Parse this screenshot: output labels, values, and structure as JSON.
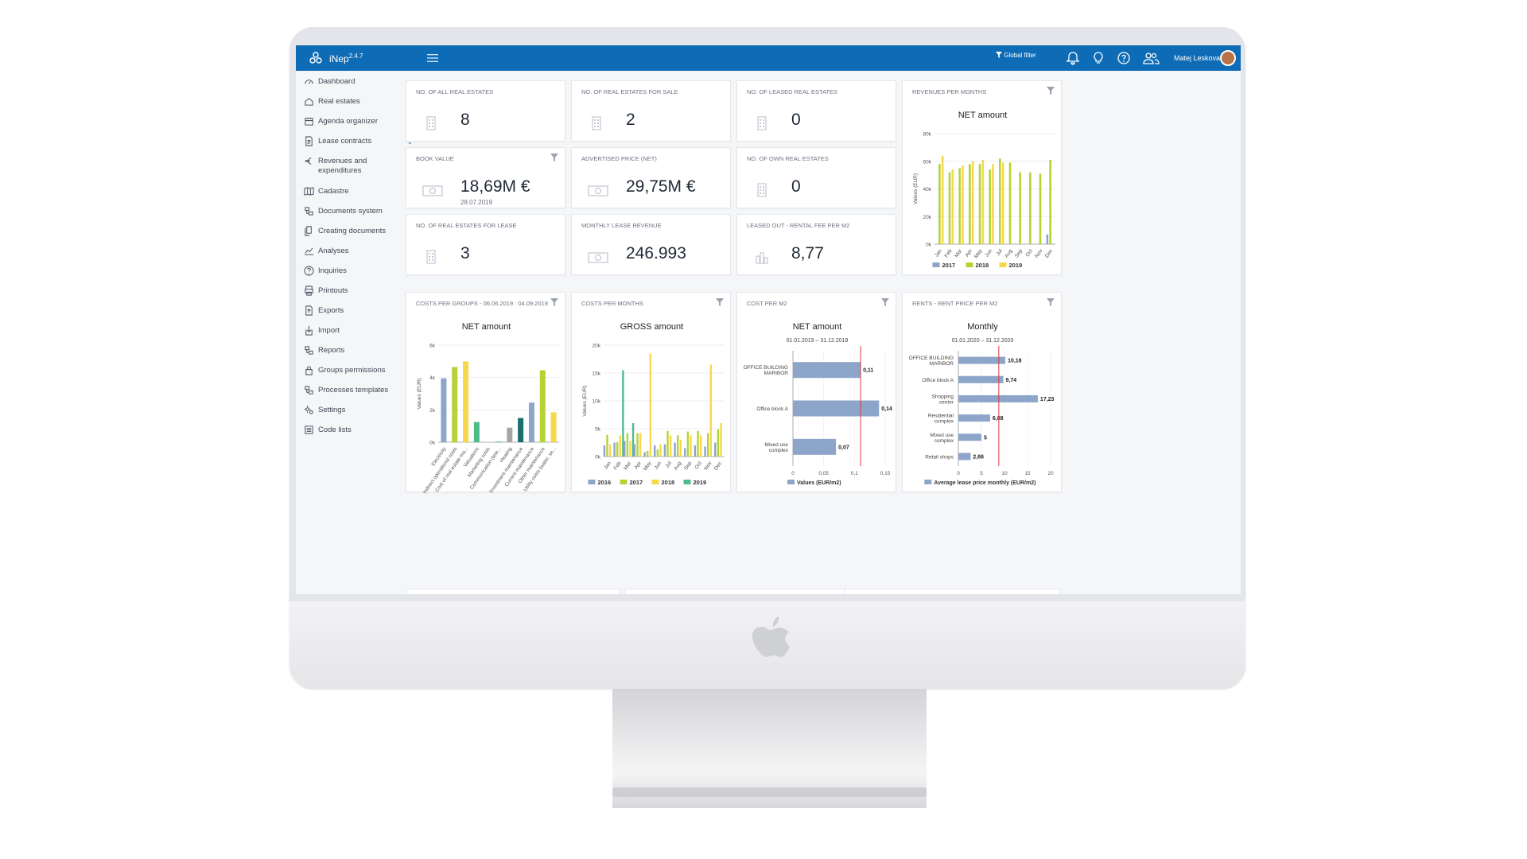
{
  "app": {
    "brand": "iNep",
    "version": "2.4.7",
    "global_filter": "Global filter",
    "user_name": "Matej Leskovar"
  },
  "sidebar": {
    "items": [
      {
        "label": "Dashboard",
        "icon": "dashboard-icon",
        "expandable": false
      },
      {
        "label": "Real estates",
        "icon": "home-icon",
        "expandable": true
      },
      {
        "label": "Agenda organizer",
        "icon": "calendar-icon",
        "expandable": false
      },
      {
        "label": "Lease contracts",
        "icon": "contract-icon",
        "expandable": true
      },
      {
        "label": "Revenues and expenditures",
        "icon": "euro-icon",
        "expandable": true
      },
      {
        "label": "Cadastre",
        "icon": "map-icon",
        "expandable": true
      },
      {
        "label": "Documents system",
        "icon": "documents-system-icon",
        "expandable": false
      },
      {
        "label": "Creating documents",
        "icon": "copy-icon",
        "expandable": false
      },
      {
        "label": "Analyses",
        "icon": "analytics-icon",
        "expandable": true
      },
      {
        "label": "Inquiries",
        "icon": "question-icon",
        "expandable": false
      },
      {
        "label": "Printouts",
        "icon": "printer-icon",
        "expandable": false
      },
      {
        "label": "Exports",
        "icon": "export-icon",
        "expandable": false
      },
      {
        "label": "Import",
        "icon": "import-icon",
        "expandable": false
      },
      {
        "label": "Reports",
        "icon": "reports-icon",
        "expandable": false
      },
      {
        "label": "Groups permissions",
        "icon": "lock-icon",
        "expandable": false
      },
      {
        "label": "Processes templates",
        "icon": "processes-icon",
        "expandable": false
      },
      {
        "label": "Settings",
        "icon": "gears-icon",
        "expandable": false
      },
      {
        "label": "Code lists",
        "icon": "list-icon",
        "expandable": false
      }
    ]
  },
  "kpis": [
    {
      "title": "NO. OF ALL REAL ESTATES",
      "value": "8",
      "sub": "",
      "icon": "building-icon",
      "filter": false
    },
    {
      "title": "NO. OF REAL ESTATES FOR SALE",
      "value": "2",
      "sub": "",
      "icon": "building-icon",
      "filter": false
    },
    {
      "title": "NO. OF LEASED REAL ESTATES",
      "value": "0",
      "sub": "",
      "icon": "building-icon",
      "filter": false
    },
    {
      "title": "BOOK VALUE",
      "value": "18,69M €",
      "sub": "28.07.2019",
      "icon": "money-icon",
      "filter": true
    },
    {
      "title": "ADVERTISED PRICE (NET)",
      "value": "29,75M €",
      "sub": "",
      "icon": "money-icon",
      "filter": false
    },
    {
      "title": "NO. OF OWN REAL ESTATES",
      "value": "0",
      "sub": "",
      "icon": "building-icon",
      "filter": false
    },
    {
      "title": "NO. OF REAL ESTATES FOR LEASE",
      "value": "3",
      "sub": "",
      "icon": "building-icon",
      "filter": false
    },
    {
      "title": "MONTHLY LEASE REVENUE",
      "value": "246.993",
      "sub": "",
      "icon": "money-icon",
      "filter": false
    },
    {
      "title": "LEASED OUT - RENTAL FEE PER M2",
      "value": "8,77",
      "sub": "",
      "icon": "bar-chart-icon",
      "filter": false
    }
  ],
  "colors": {
    "blue": "#8ca5c9",
    "green": "#b5d334",
    "yellow": "#f6d84a",
    "teal": "#4ebc8a",
    "gray": "#a6a6a6",
    "dark_teal": "#1a6e6c",
    "red_line": "#e03a3a",
    "topbar": "#0e6bb5"
  },
  "chart_data": [
    {
      "id": "revenues",
      "card_title": "REVENUES PER MONTHS",
      "type": "bar",
      "title": "NET amount",
      "ylabel": "Values (EUR)",
      "ylim": [
        0,
        80000
      ],
      "yticks": [
        "0k",
        "20k",
        "40k",
        "60k",
        "80k"
      ],
      "categories": [
        "Jan",
        "Feb",
        "Mar",
        "Apr",
        "May",
        "Jun",
        "Jul",
        "Aug",
        "Sep",
        "Oct",
        "Nov",
        "Dec"
      ],
      "series": [
        {
          "name": "2017",
          "color": "#8ca5c9",
          "values": [
            0,
            0,
            0,
            0,
            0,
            0,
            0,
            0,
            0,
            0,
            0,
            7000
          ]
        },
        {
          "name": "2018",
          "color": "#b5d334",
          "values": [
            58000,
            52000,
            55000,
            58000,
            58000,
            54000,
            62000,
            59000,
            52000,
            52000,
            51000,
            61000
          ]
        },
        {
          "name": "2019",
          "color": "#f6d84a",
          "values": [
            64000,
            54000,
            57000,
            60000,
            61000,
            58000,
            59000,
            0,
            0,
            0,
            0,
            0
          ]
        }
      ]
    },
    {
      "id": "costs_groups",
      "card_title": "COSTS PER GROUPS - 06.06.2019 : 04.09.2019",
      "type": "bar",
      "title": "NET amount",
      "ylabel": "Values (EUR)",
      "ylim": [
        0,
        6000
      ],
      "yticks": [
        "0k",
        "2k",
        "4k",
        "6k"
      ],
      "categories": [
        "Electricity",
        "Indirect operational costs",
        "Cost of real estate ma...",
        "Valuations",
        "Marketing costs",
        "Communication (tele...",
        "Heating",
        "Investment maintenance",
        "Current maintenance",
        "Other maintenance",
        "Utility costs (water, se..."
      ],
      "bars": [
        {
          "value": 3950,
          "color": "#8ca5c9"
        },
        {
          "value": 4650,
          "color": "#b5d334"
        },
        {
          "value": 5000,
          "color": "#f6d84a"
        },
        {
          "value": 1250,
          "color": "#4ebc8a"
        },
        {
          "value": 0,
          "color": "#8ca5c9"
        },
        {
          "value": 40,
          "color": "#4ebc8a"
        },
        {
          "value": 900,
          "color": "#a6a6a6"
        },
        {
          "value": 1500,
          "color": "#1a6e6c"
        },
        {
          "value": 2450,
          "color": "#8ca5c9"
        },
        {
          "value": 4450,
          "color": "#b5d334"
        },
        {
          "value": 1850,
          "color": "#f6d84a"
        }
      ]
    },
    {
      "id": "costs_months",
      "card_title": "COSTS PER MONTHS",
      "type": "bar",
      "title": "GROSS amount",
      "ylabel": "Values (EUR)",
      "ylim": [
        0,
        20000
      ],
      "yticks": [
        "0k",
        "5k",
        "10k",
        "15k",
        "20k"
      ],
      "categories": [
        "Jan",
        "Feb",
        "Mar",
        "Apr",
        "May",
        "Jun",
        "Jul",
        "Aug",
        "Sep",
        "Oct",
        "Nov",
        "Dec"
      ],
      "series": [
        {
          "name": "2016",
          "color": "#8ca5c9",
          "values": [
            2000,
            2500,
            2800,
            2200,
            800,
            2000,
            2200,
            2500,
            1500,
            2000,
            1800,
            2500
          ]
        },
        {
          "name": "2017",
          "color": "#b5d334",
          "values": [
            3900,
            2600,
            4200,
            4200,
            1000,
            1300,
            4600,
            3800,
            4500,
            4600,
            4200,
            4900
          ]
        },
        {
          "name": "2018",
          "color": "#f6d84a",
          "values": [
            2200,
            3800,
            2800,
            4200,
            18500,
            2200,
            3800,
            3000,
            3800,
            3800,
            16500,
            6000
          ]
        },
        {
          "name": "2019",
          "color": "#4ebc8a",
          "values": [
            0,
            15500,
            6000,
            0,
            0,
            0,
            0,
            0,
            0,
            0,
            0,
            0
          ]
        }
      ]
    },
    {
      "id": "cost_m2",
      "card_title": "COST PER M2",
      "type": "bar",
      "orientation": "horizontal",
      "title": "NET amount",
      "subtitle": "01.01.2019 – 31.12.2019",
      "xlim": [
        0,
        0.15
      ],
      "xticks": [
        "0",
        "0,05",
        "0,1",
        "0,15"
      ],
      "ref_value": 0.11,
      "legend": "Values (EUR/m2)",
      "legend_color": "#8ca5c9",
      "categories": [
        "OFFICE BUILDING MARIBOR",
        "Office block A",
        "Mixed use complex"
      ],
      "values": [
        0.11,
        0.14,
        0.07
      ],
      "labels": [
        "0,11",
        "0,14",
        "0,07"
      ]
    },
    {
      "id": "rents",
      "card_title": "RENTS - RENT PRICE PER M2",
      "type": "bar",
      "orientation": "horizontal",
      "title": "Monthly",
      "subtitle": "01.01.2020 – 31.12.2020",
      "xlim": [
        0,
        20
      ],
      "xticks": [
        "0",
        "5",
        "10",
        "15",
        "20"
      ],
      "ref_value": 8.77,
      "legend": "Average lease price monthly (EUR/m2)",
      "legend_color": "#8ca5c9",
      "categories": [
        "OFFICE BUILDING MARIBOR",
        "Office block A",
        "Shopping center",
        "Residential complex",
        "Mixed use complex",
        "Retail shops"
      ],
      "values": [
        10.18,
        9.74,
        17.23,
        6.88,
        5,
        2.66
      ],
      "labels": [
        "10,18",
        "9,74",
        "17,23",
        "6,88",
        "5",
        "2,66"
      ]
    }
  ]
}
